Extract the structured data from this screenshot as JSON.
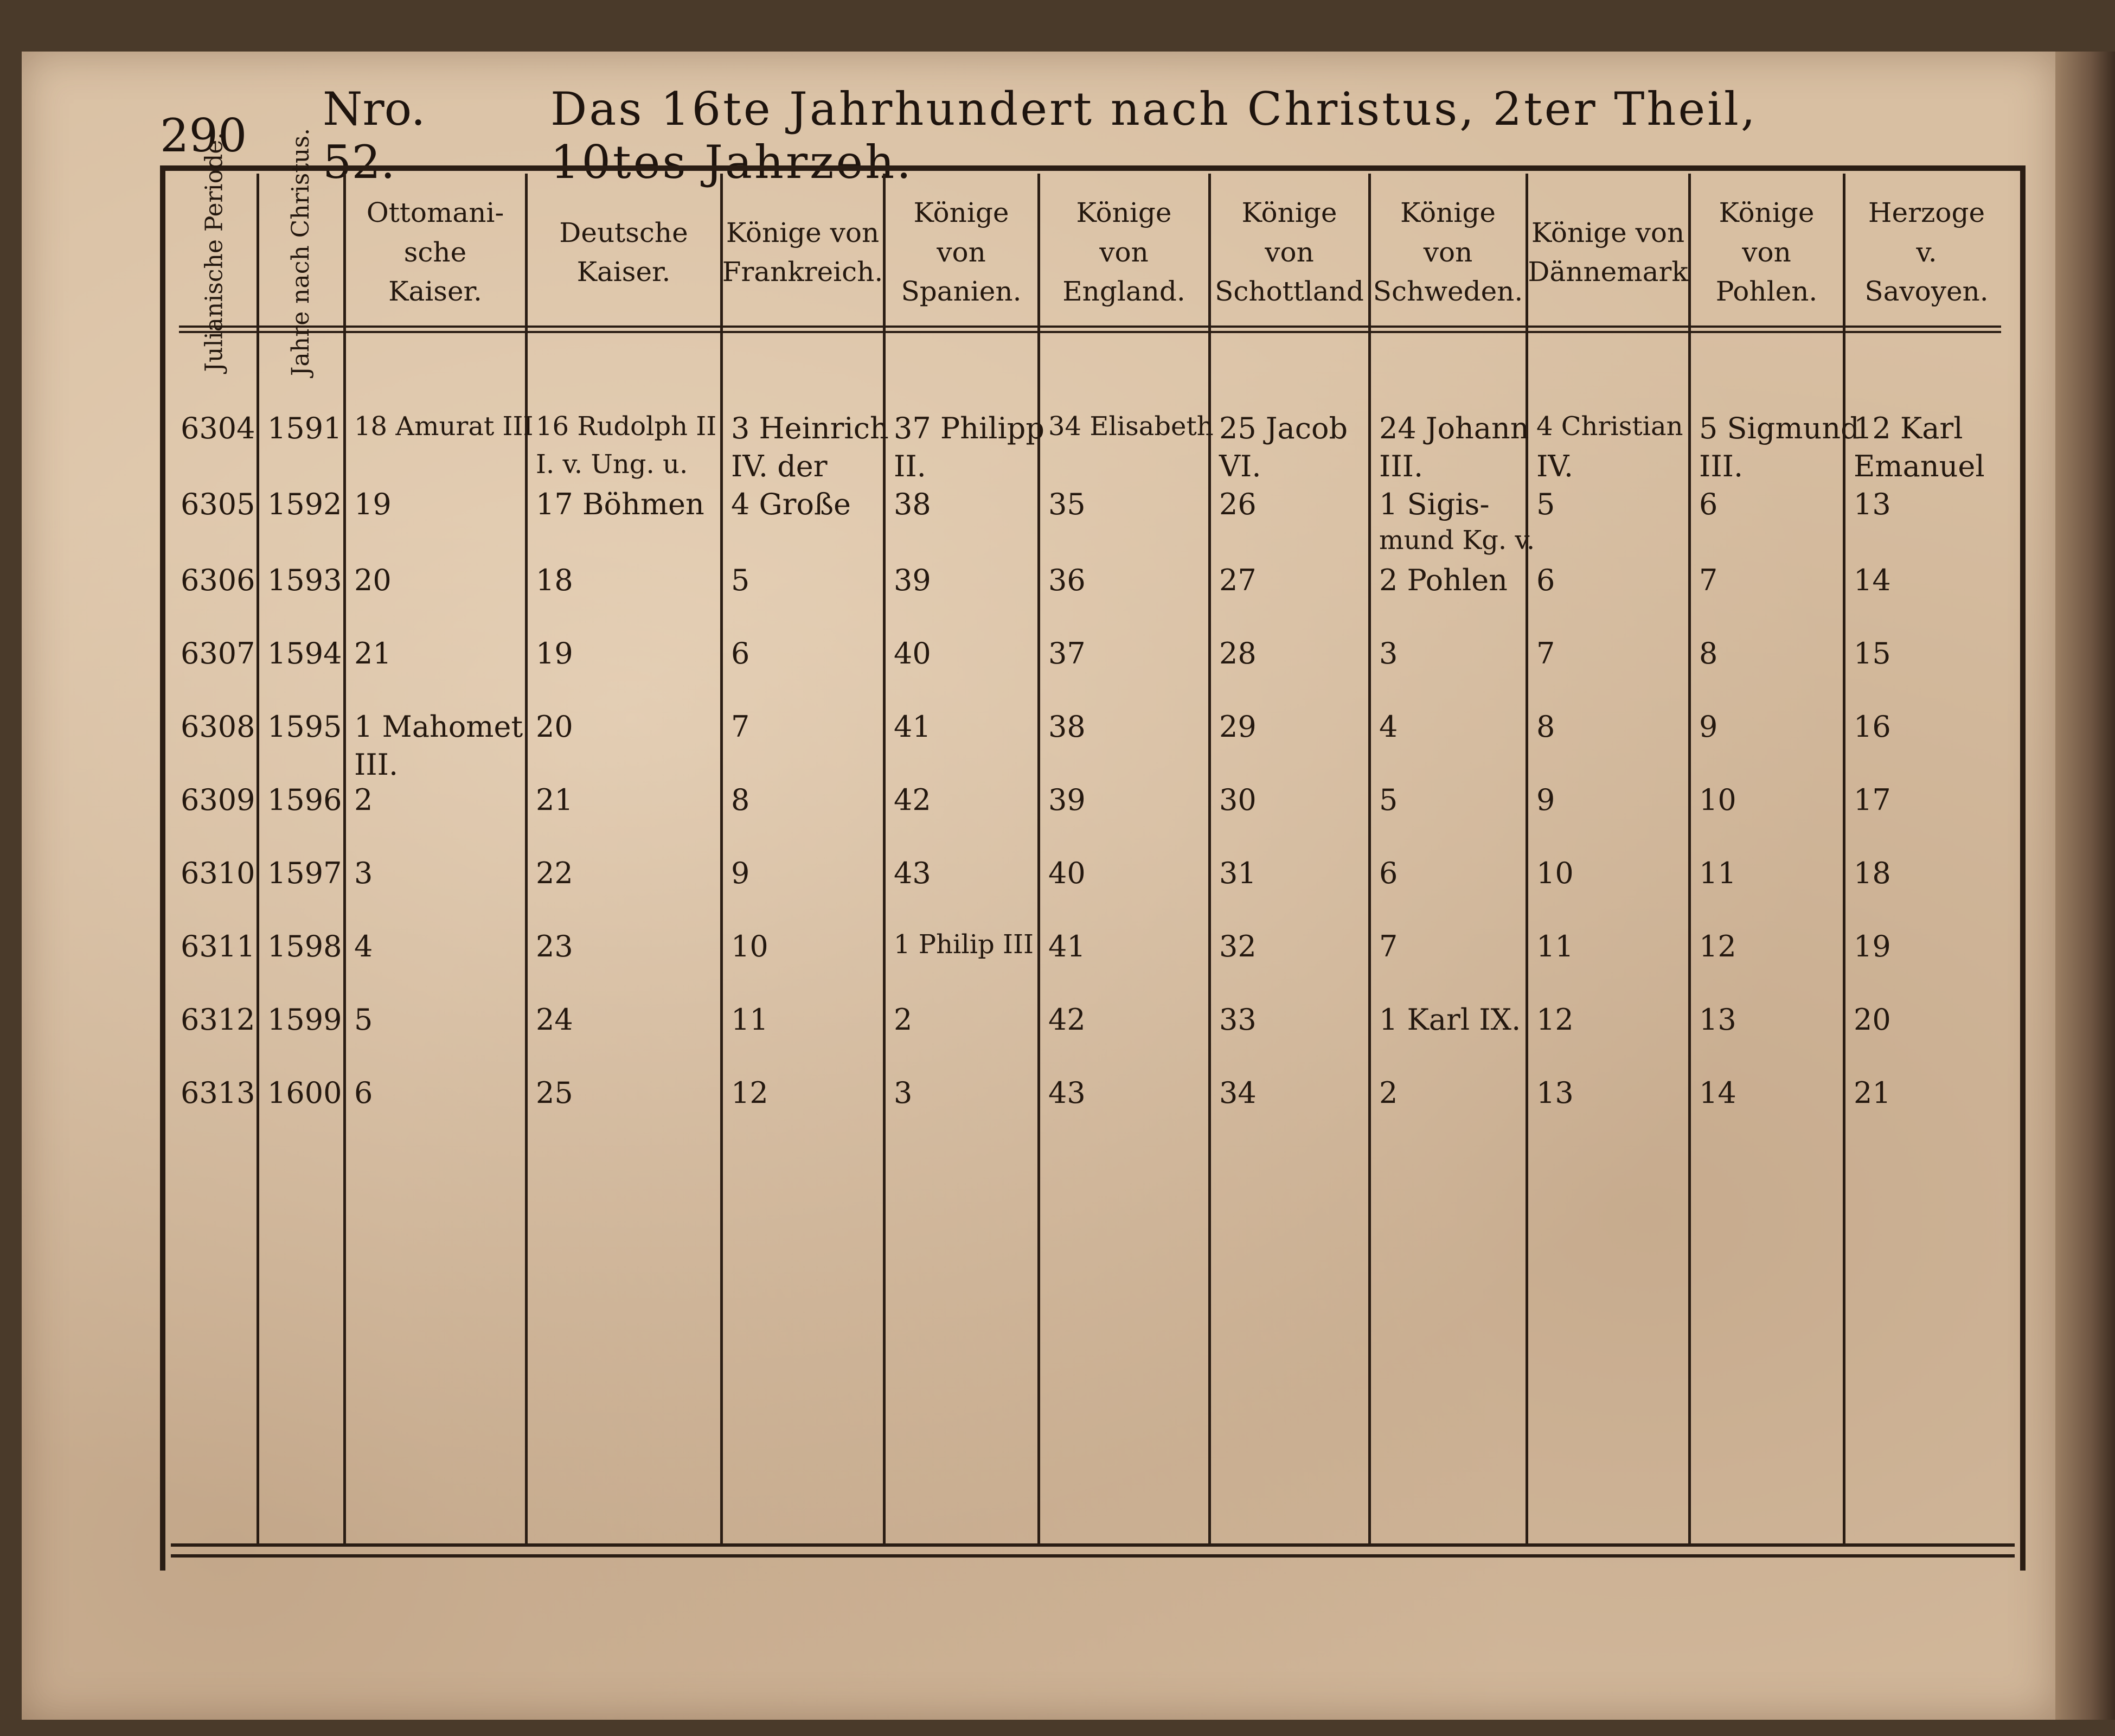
{
  "header": {
    "page_number": "290",
    "number": "Nro. 52.",
    "title": "Das 16te Jahrhundert nach Christus, 2ter Theil, 10tes Jahrzeh."
  },
  "columns": [
    {
      "label": "Julianische Periode."
    },
    {
      "label": "Jahre nach Christus."
    },
    {
      "label": "Ottomani-sche Kaiser."
    },
    {
      "label": "Deutsche Kaiser."
    },
    {
      "label": "Könige von Frankreich."
    },
    {
      "label": "Könige von Spanien."
    },
    {
      "label": "Könige von England."
    },
    {
      "label": "Könige von Schottland"
    },
    {
      "label": "Könige von Schweden."
    },
    {
      "label": "Könige von Dännemark"
    },
    {
      "label": "Könige von Pohlen."
    },
    {
      "label": "Herzoge v. Savoyen."
    }
  ],
  "rows": [
    [
      "6304",
      "1591",
      "18 Amurat III",
      "16 Rudolph II",
      "3 Heinrich",
      "37 Philipp",
      "34 Elisabeth",
      "25 Jacob",
      "24 Johann",
      "4 Christian",
      "5 Sigmund",
      "12 Karl"
    ],
    [
      "",
      "",
      "",
      "I. v. Ung. u.",
      "IV. der",
      "II.",
      "",
      "VI.",
      "III.",
      "IV.",
      "III.",
      "Emanuel"
    ],
    [
      "6305",
      "1592",
      "19",
      "17 Böhmen",
      "4 Große",
      "38",
      "35",
      "26",
      "1 Sigis-",
      "5",
      "6",
      "13"
    ],
    [
      "",
      "",
      "",
      "",
      "",
      "",
      "",
      "",
      "mund Kg. v.",
      "",
      "",
      ""
    ],
    [
      "6306",
      "1593",
      "20",
      "18",
      "5",
      "39",
      "36",
      "27",
      "2 Pohlen",
      "6",
      "7",
      "14"
    ],
    [
      "6307",
      "1594",
      "21",
      "19",
      "6",
      "40",
      "37",
      "28",
      "3",
      "7",
      "8",
      "15"
    ],
    [
      "6308",
      "1595",
      "1 Mahomet",
      "20",
      "7",
      "41",
      "38",
      "29",
      "4",
      "8",
      "9",
      "16"
    ],
    [
      "",
      "",
      "III.",
      "",
      "",
      "",
      "",
      "",
      "",
      "",
      "",
      ""
    ],
    [
      "6309",
      "1596",
      "2",
      "21",
      "8",
      "42",
      "39",
      "30",
      "5",
      "9",
      "10",
      "17"
    ],
    [
      "6310",
      "1597",
      "3",
      "22",
      "9",
      "43",
      "40",
      "31",
      "6",
      "10",
      "11",
      "18"
    ],
    [
      "6311",
      "1598",
      "4",
      "23",
      "10",
      "1 Philip III",
      "41",
      "32",
      "7",
      "11",
      "12",
      "19"
    ],
    [
      "6312",
      "1599",
      "5",
      "24",
      "11",
      "2",
      "42",
      "33",
      "1 Karl IX.",
      "12",
      "13",
      "20"
    ],
    [
      "6313",
      "1600",
      "6",
      "25",
      "12",
      "3",
      "43",
      "34",
      "2",
      "13",
      "14",
      "21"
    ]
  ]
}
